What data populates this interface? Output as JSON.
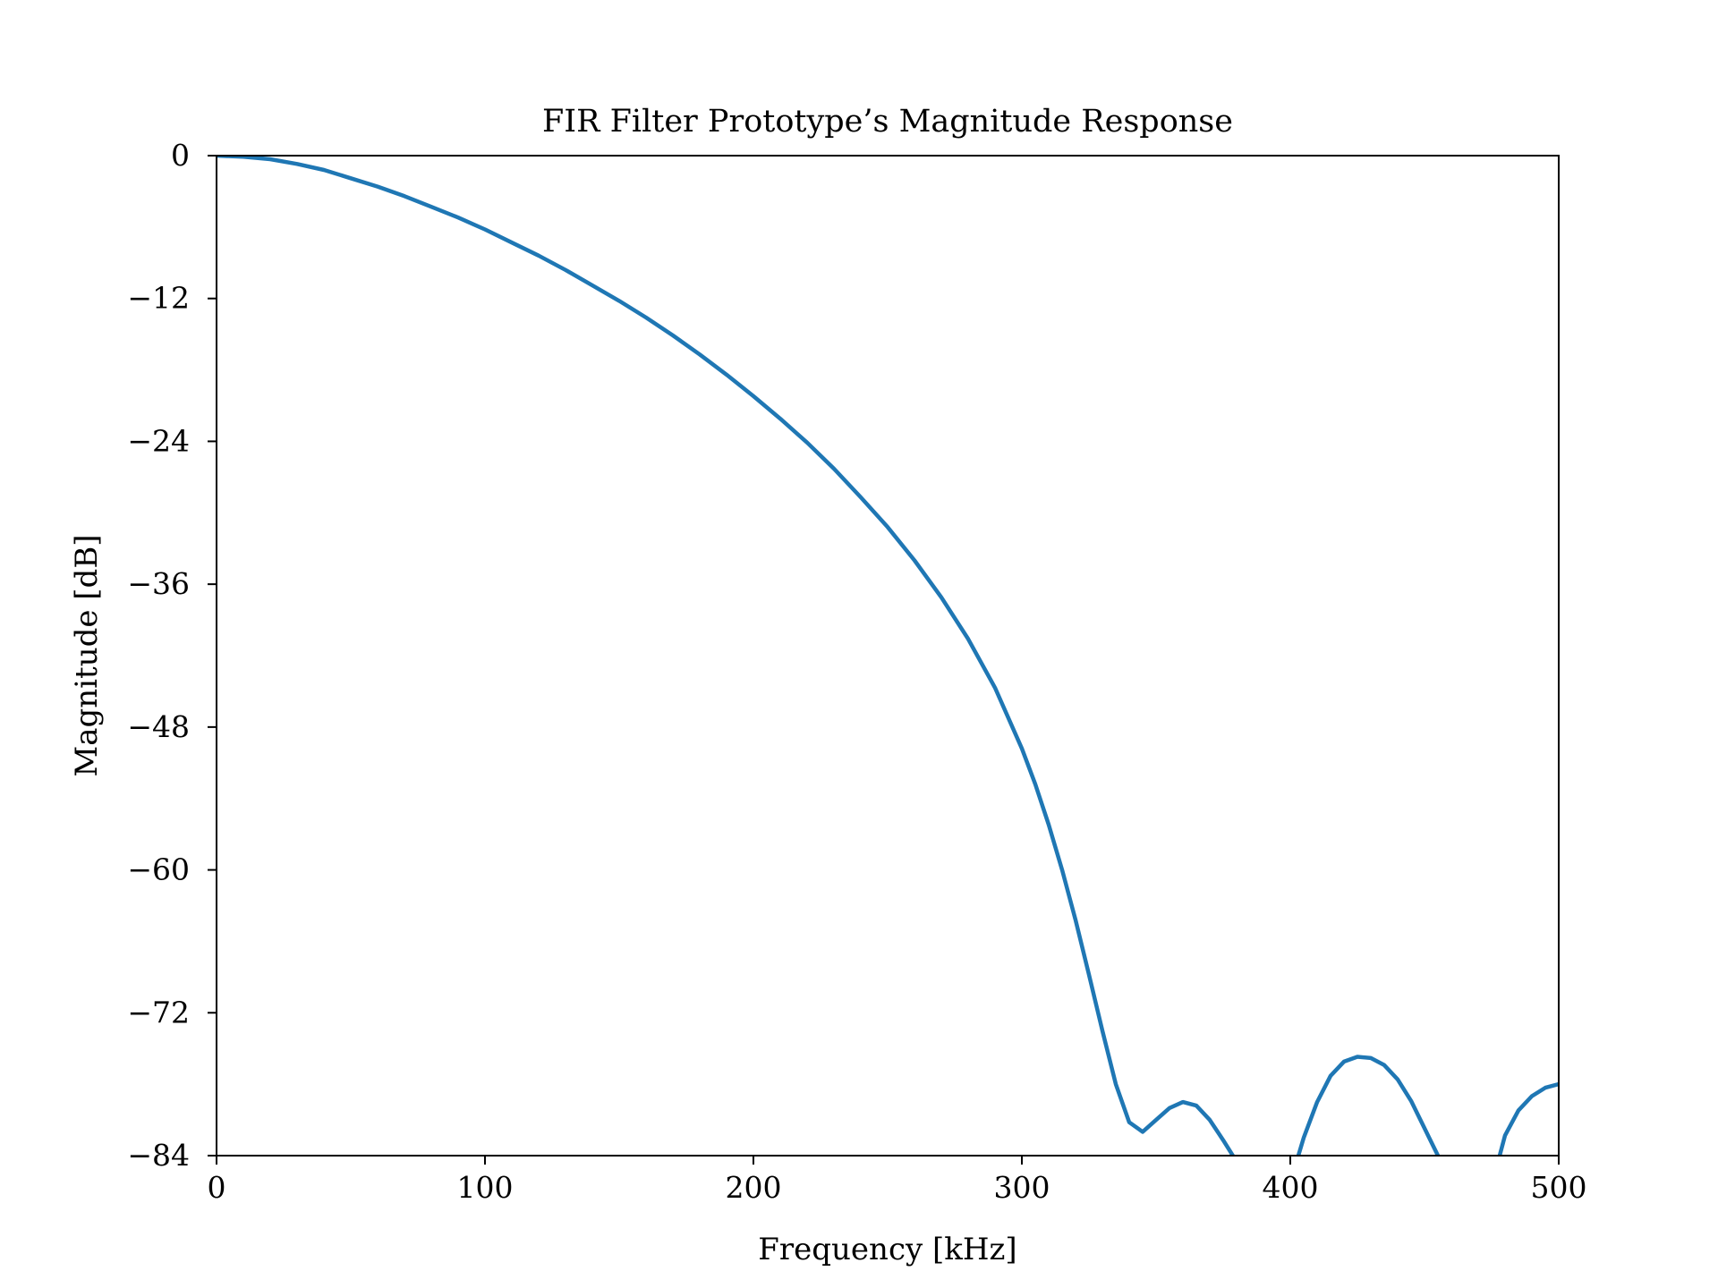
{
  "chart_data": {
    "type": "line",
    "title": "FIR Filter Prototype’s Magnitude Response",
    "xlabel": "Frequency [kHz]",
    "ylabel": "Magnitude [dB]",
    "xlim": [
      0,
      500
    ],
    "ylim": [
      -84,
      0
    ],
    "xticks": [
      0,
      100,
      200,
      300,
      400,
      500
    ],
    "xtick_labels": [
      "0",
      "100",
      "200",
      "300",
      "400",
      "500"
    ],
    "yticks": [
      0,
      -12,
      -24,
      -36,
      -48,
      -60,
      -72,
      -84
    ],
    "ytick_labels": [
      "0",
      "−12",
      "−24",
      "−36",
      "−48",
      "−60",
      "−72",
      "−84"
    ],
    "grid": false,
    "colors": {
      "line": "#1f77b4",
      "axes": "#000000"
    },
    "series": [
      {
        "x": [
          0,
          10,
          20,
          30,
          40,
          50,
          60,
          70,
          80,
          90,
          100,
          110,
          120,
          130,
          140,
          150,
          160,
          170,
          180,
          190,
          200,
          210,
          220,
          230,
          240,
          250,
          260,
          270,
          280,
          290,
          300,
          305,
          310,
          315,
          320,
          325,
          330,
          335,
          340,
          345,
          350,
          355,
          360,
          365,
          370,
          375,
          380,
          382,
          385,
          390,
          395,
          400,
          403,
          405,
          410,
          415,
          420,
          425,
          430,
          435,
          440,
          445,
          450,
          455,
          458,
          460,
          465,
          470,
          475,
          478,
          480,
          485,
          490,
          495,
          500
        ],
        "y": [
          0,
          -0.1,
          -0.3,
          -0.7,
          -1.2,
          -1.9,
          -2.6,
          -3.4,
          -4.3,
          -5.2,
          -6.2,
          -7.3,
          -8.4,
          -9.6,
          -10.9,
          -12.2,
          -13.6,
          -15.1,
          -16.7,
          -18.4,
          -20.2,
          -22.1,
          -24.1,
          -26.3,
          -28.7,
          -31.2,
          -34.0,
          -37.1,
          -40.6,
          -44.7,
          -49.8,
          -52.8,
          -56.2,
          -60.0,
          -64.2,
          -68.8,
          -73.5,
          -78.0,
          -81.2,
          -82.0,
          -81.0,
          -80.0,
          -79.5,
          -79.8,
          -81.0,
          -82.7,
          -84.5,
          -85.5,
          -88,
          -90,
          -88,
          -85.5,
          -84.0,
          -82.5,
          -79.5,
          -77.3,
          -76.1,
          -75.7,
          -75.8,
          -76.4,
          -77.6,
          -79.4,
          -81.7,
          -84.0,
          -85.5,
          -87,
          -90,
          -90,
          -87,
          -84.0,
          -82.3,
          -80.2,
          -79.0,
          -78.3,
          -78.0
        ]
      }
    ]
  }
}
